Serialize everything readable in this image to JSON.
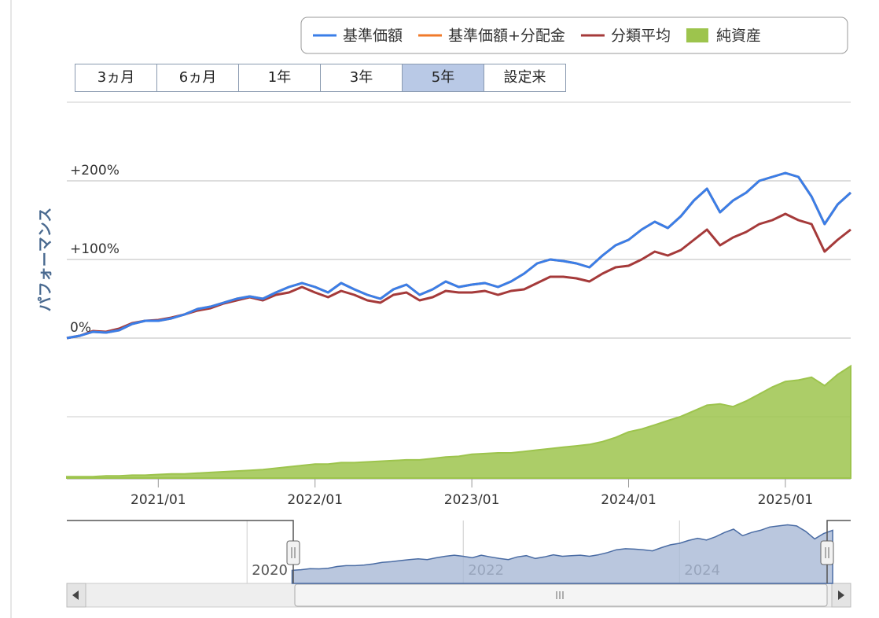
{
  "chart_data": {
    "type": "line",
    "y_axis_title": "パフォーマンス",
    "range_buttons": [
      "3ヵ月",
      "6ヵ月",
      "1年",
      "3年",
      "5年",
      "設定来"
    ],
    "selected_button": 4,
    "x": [
      "2020/06",
      "2020/07",
      "2020/08",
      "2020/09",
      "2020/10",
      "2020/11",
      "2020/12",
      "2021/01",
      "2021/02",
      "2021/03",
      "2021/04",
      "2021/05",
      "2021/06",
      "2021/07",
      "2021/08",
      "2021/09",
      "2021/10",
      "2021/11",
      "2021/12",
      "2022/01",
      "2022/02",
      "2022/03",
      "2022/04",
      "2022/05",
      "2022/06",
      "2022/07",
      "2022/08",
      "2022/09",
      "2022/10",
      "2022/11",
      "2022/12",
      "2023/01",
      "2023/02",
      "2023/03",
      "2023/04",
      "2023/05",
      "2023/06",
      "2023/07",
      "2023/08",
      "2023/09",
      "2023/10",
      "2023/11",
      "2023/12",
      "2024/01",
      "2024/02",
      "2024/03",
      "2024/04",
      "2024/05",
      "2024/06",
      "2024/07",
      "2024/08",
      "2024/09",
      "2024/10",
      "2024/11",
      "2024/12",
      "2025/01",
      "2025/02",
      "2025/03",
      "2025/04",
      "2025/05",
      "2025/06"
    ],
    "xlim": [
      "2020/06",
      "2025/06"
    ],
    "xticks": [
      "2021/01",
      "2022/01",
      "2023/01",
      "2024/01",
      "2025/01"
    ],
    "ylim": [
      -100,
      300
    ],
    "yticks": [
      {
        "value": 0,
        "label": "0%"
      },
      {
        "value": 100,
        "label": "+100%"
      },
      {
        "value": 200,
        "label": "+200%"
      }
    ],
    "y2lim": [
      0,
      100
    ],
    "grid": true,
    "series": [
      {
        "name": "基準価額",
        "color": "#3a7ee8",
        "values": [
          0,
          3,
          8,
          7,
          10,
          18,
          22,
          22,
          25,
          30,
          37,
          40,
          45,
          50,
          53,
          50,
          58,
          65,
          70,
          65,
          58,
          70,
          62,
          55,
          50,
          62,
          68,
          55,
          62,
          72,
          65,
          68,
          70,
          65,
          72,
          82,
          95,
          100,
          98,
          95,
          90,
          105,
          118,
          125,
          138,
          148,
          140,
          155,
          175,
          190,
          160,
          175,
          185,
          200,
          205,
          210,
          205,
          180,
          145,
          170,
          185
        ]
      },
      {
        "name": "基準価額+分配金",
        "color": "#f07a2a",
        "values": [
          0,
          3,
          8,
          7,
          10,
          18,
          22,
          22,
          25,
          30,
          37,
          40,
          45,
          50,
          53,
          50,
          58,
          65,
          70,
          65,
          58,
          70,
          62,
          55,
          50,
          62,
          68,
          55,
          62,
          72,
          65,
          68,
          70,
          65,
          72,
          82,
          95,
          100,
          98,
          95,
          90,
          105,
          118,
          125,
          138,
          148,
          140,
          155,
          175,
          190,
          160,
          175,
          185,
          200,
          205,
          210,
          205,
          180,
          145,
          170,
          185
        ]
      },
      {
        "name": "分類平均",
        "color": "#a53a3a",
        "values": [
          0,
          3,
          9,
          8,
          12,
          19,
          22,
          23,
          26,
          30,
          35,
          38,
          44,
          48,
          52,
          48,
          55,
          58,
          65,
          58,
          52,
          60,
          55,
          48,
          45,
          55,
          58,
          48,
          52,
          60,
          58,
          58,
          60,
          55,
          60,
          62,
          70,
          78,
          78,
          76,
          72,
          82,
          90,
          92,
          100,
          110,
          105,
          112,
          125,
          138,
          118,
          128,
          135,
          145,
          150,
          158,
          150,
          145,
          110,
          125,
          138
        ]
      },
      {
        "name": "純資産",
        "color": "#9dc44d",
        "axis": "y2",
        "values": [
          1,
          1,
          1,
          1.5,
          1.5,
          2,
          2,
          2.5,
          3,
          3,
          3.5,
          4,
          4.5,
          5,
          5.5,
          6,
          7,
          8,
          9,
          10,
          10,
          11,
          11,
          11.5,
          12,
          12.5,
          13,
          13,
          14,
          15,
          15.5,
          17,
          17.5,
          18,
          18,
          19,
          20,
          21,
          22,
          23,
          24,
          26,
          29,
          33,
          35,
          38,
          41,
          44,
          48,
          52,
          53,
          51,
          55,
          60,
          65,
          69,
          70,
          72,
          66,
          74,
          80
        ]
      }
    ],
    "navigator": {
      "xlim": [
        "2018/05",
        "2025/08"
      ],
      "ylim": [
        -60,
        230
      ],
      "xticks": [
        "2020",
        "2022",
        "2024"
      ]
    }
  }
}
